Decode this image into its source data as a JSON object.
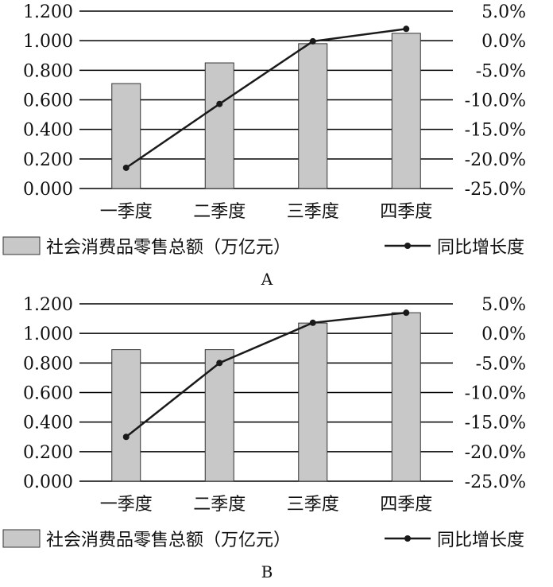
{
  "chart_data": [
    {
      "type": "bar",
      "panel_label": "A",
      "categories": [
        "一季度",
        "二季度",
        "三季度",
        "四季度"
      ],
      "series": [
        {
          "name": "社会消费品零售总额（万亿元）",
          "type": "bar",
          "axis": "left",
          "values": [
            0.71,
            0.85,
            0.98,
            1.05
          ]
        },
        {
          "name": "同比增长度",
          "type": "line",
          "axis": "right",
          "values": [
            -21.5,
            -10.7,
            -0.1,
            2.0
          ]
        }
      ],
      "y_left": {
        "lim": [
          0,
          1.2
        ],
        "ticks": [
          "0.000",
          "0.200",
          "0.400",
          "0.600",
          "0.800",
          "1.000",
          "1.200"
        ]
      },
      "y_right": {
        "lim": [
          -25,
          5
        ],
        "ticks": [
          "-25.0%",
          "-20.0%",
          "-15.0%",
          "-10.0%",
          "-5.0%",
          "0.0%",
          "5.0%"
        ]
      },
      "grid": true,
      "legend": "bottom",
      "colors": {
        "bar_fill": "#c8c8c8",
        "bar_stroke": "#333333",
        "line": "#1a1a1a",
        "grid": "#000000"
      }
    },
    {
      "type": "bar",
      "panel_label": "B",
      "categories": [
        "一季度",
        "二季度",
        "三季度",
        "四季度"
      ],
      "series": [
        {
          "name": "社会消费品零售总额（万亿元）",
          "type": "bar",
          "axis": "left",
          "values": [
            0.89,
            0.89,
            1.07,
            1.14
          ]
        },
        {
          "name": "同比增长度",
          "type": "line",
          "axis": "right",
          "values": [
            -17.5,
            -5.0,
            1.8,
            3.5
          ]
        }
      ],
      "y_left": {
        "lim": [
          0,
          1.2
        ],
        "ticks": [
          "0.000",
          "0.200",
          "0.400",
          "0.600",
          "0.800",
          "1.000",
          "1.200"
        ]
      },
      "y_right": {
        "lim": [
          -25,
          5
        ],
        "ticks": [
          "-25.0%",
          "-20.0%",
          "-15.0%",
          "-10.0%",
          "-5.0%",
          "0.0%",
          "5.0%"
        ]
      },
      "grid": true,
      "legend": "bottom",
      "colors": {
        "bar_fill": "#c8c8c8",
        "bar_stroke": "#333333",
        "line": "#1a1a1a",
        "grid": "#000000"
      }
    }
  ]
}
